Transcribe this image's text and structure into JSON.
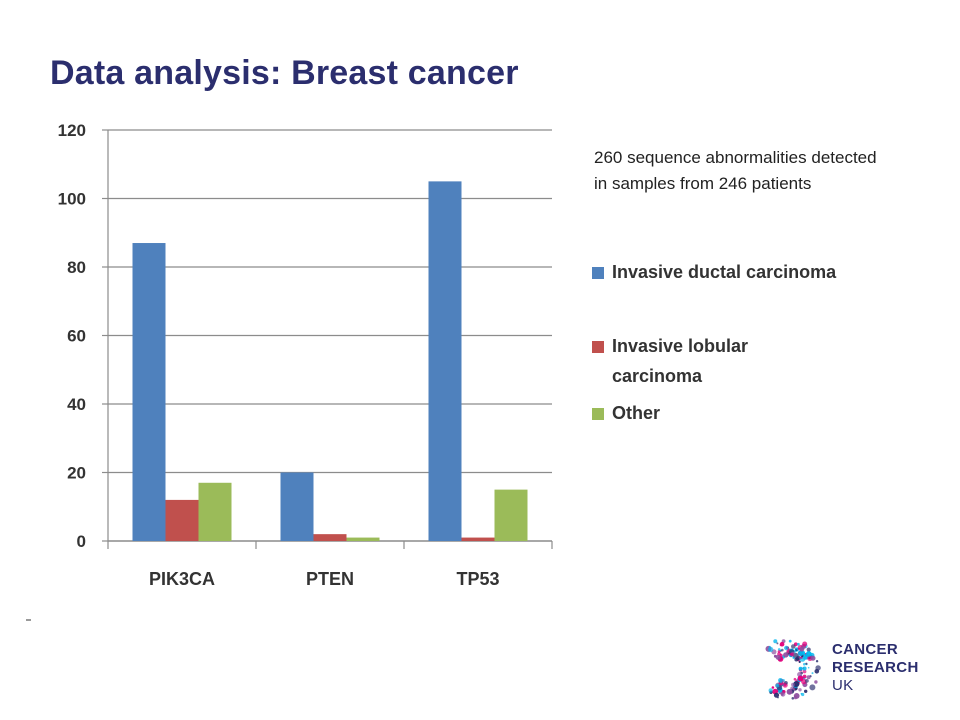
{
  "slide": {
    "title": "Data analysis: Breast cancer",
    "note": "260  sequence abnormalities detected in samples from 246 patients"
  },
  "legend": [
    {
      "label": "Invasive ductal carcinoma",
      "color": "#4f81bd"
    },
    {
      "label": "Invasive lobular carcinoma",
      "color": "#c0504d"
    },
    {
      "label": "Other",
      "color": "#9bbb59"
    }
  ],
  "chart_data": {
    "type": "bar",
    "categories": [
      "PIK3CA",
      "PTEN",
      "TP53"
    ],
    "series": [
      {
        "name": "Invasive ductal carcinoma",
        "color": "#4f81bd",
        "values": [
          87,
          20,
          105
        ]
      },
      {
        "name": "Invasive lobular carcinoma",
        "color": "#c0504d",
        "values": [
          12,
          2,
          1
        ]
      },
      {
        "name": "Other",
        "color": "#9bbb59",
        "values": [
          17,
          1,
          15
        ]
      }
    ],
    "title": "",
    "xlabel": "",
    "ylabel": "",
    "ylim": [
      0,
      120
    ],
    "yticks": [
      0,
      20,
      40,
      60,
      80,
      100,
      120
    ],
    "grid": true,
    "legend_position": "right"
  },
  "logo": {
    "line1": "CANCER",
    "line2": "RESEARCH",
    "line3": "UK",
    "colors": [
      "#e4007c",
      "#2b2e6e",
      "#00b6ed",
      "#8e4f9f"
    ]
  }
}
